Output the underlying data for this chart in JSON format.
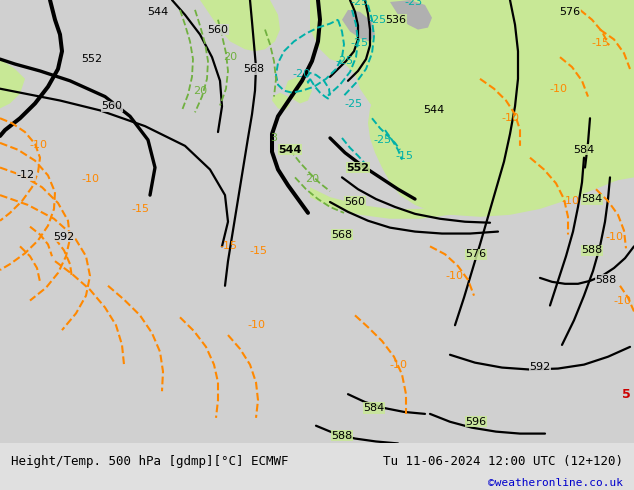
{
  "title_left": "Height/Temp. 500 hPa [gdmp][°C] ECMWF",
  "title_right": "Tu 11-06-2024 12:00 UTC (12+120)",
  "credit": "©weatheronline.co.uk",
  "bg_ocean_color": "#d4d4d4",
  "bg_land_green": "#c8e8a0",
  "bg_land_gray": "#b8b8b8",
  "black_lw": 1.6,
  "black_lw_bold": 2.4,
  "orange_lw": 1.5,
  "cyan_lw": 1.4,
  "green_lw": 1.3,
  "bottom_bar_color": "#e0e0e0",
  "bottom_text_color": "#000000",
  "credit_color": "#0000cc",
  "font_size_bottom": 9,
  "font_size_credit": 8,
  "font_size_label": 8
}
